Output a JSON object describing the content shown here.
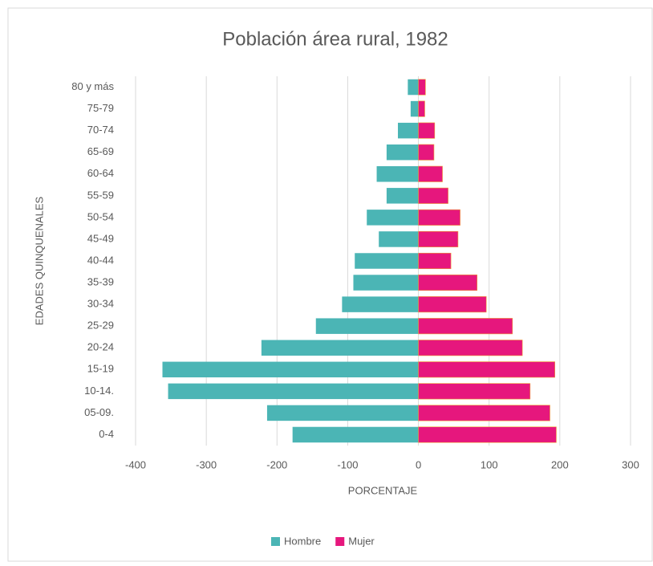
{
  "chart_data": {
    "type": "bar",
    "orientation": "horizontal",
    "stacked": true,
    "title": "Población área rural, 1982",
    "x_label": "PORCENTAJE",
    "y_label": "EDADES QUINQUENALES",
    "categories": [
      "0-4",
      "05-09.",
      "10-14.",
      "15-19",
      "20-24",
      "25-29",
      "30-34",
      "35-39",
      "40-44",
      "45-49",
      "50-54",
      "55-59",
      "60-64",
      "65-69",
      "70-74",
      "75-79",
      "80 y más"
    ],
    "series": [
      {
        "name": "Hombre",
        "color": "#4bb5b5",
        "values": [
          -178,
          -214,
          -354,
          -362,
          -222,
          -145,
          -108,
          -92,
          -90,
          -56,
          -73,
          -45,
          -59,
          -45,
          -29,
          -11,
          -15
        ]
      },
      {
        "name": "Mujer",
        "color": "#e6177d",
        "values": [
          195,
          186,
          158,
          193,
          147,
          133,
          96,
          83,
          46,
          56,
          59,
          42,
          34,
          22,
          23,
          9,
          10
        ]
      }
    ],
    "xlim": [
      -400,
      300
    ],
    "xticks": [
      -400,
      -300,
      -200,
      -100,
      0,
      100,
      200,
      300
    ],
    "grid": true,
    "legend": "bottom"
  }
}
